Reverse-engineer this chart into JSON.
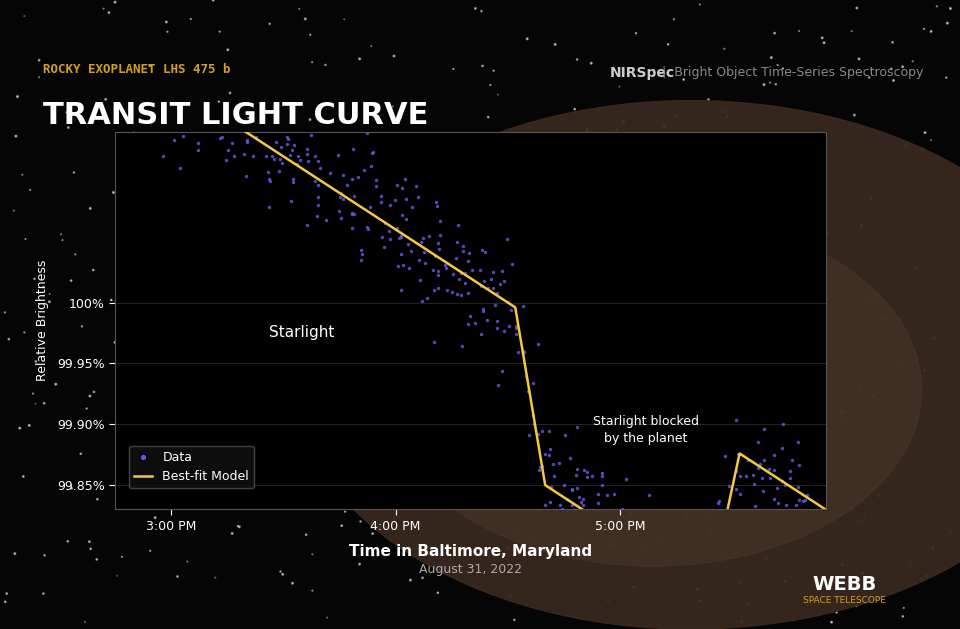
{
  "bg_color": "#050505",
  "plot_bg_color": "#000000",
  "title_small": "ROCKY EXOPLANET LHS 475 b",
  "title_large": "TRANSIT LIGHT CURVE",
  "title_small_color": "#d4a017",
  "title_large_color": "#ffffff",
  "nirspec_text": "NIRSpec",
  "nirspec_subtitle": "Bright Object Time-Series Spectroscopy",
  "xlabel_main": "Time in Baltimore, Maryland",
  "xlabel_sub": "August 31, 2022",
  "ylabel": "Relative Brightness",
  "yticks": [
    99.85,
    99.9,
    99.95,
    100.0
  ],
  "ytick_labels": [
    "99.85%",
    "99.90%",
    "99.95%",
    "100%"
  ],
  "xtick_labels": [
    "3:00 PM",
    "4:00 PM",
    "5:00 PM"
  ],
  "xtick_positions": [
    0.0,
    60.0,
    120.0
  ],
  "ylim": [
    99.83,
    100.14
  ],
  "xlim": [
    -15,
    175
  ],
  "transit_ingress": 96.0,
  "transit_egress": 148.0,
  "transit_depth": 0.13,
  "baseline_slope": -0.002,
  "data_color": "#6655dd",
  "model_color": "#f5c842",
  "starlight_label": "Starlight",
  "blocked_label": "Starlight blocked\nby the planet",
  "legend_label_data": "Data",
  "legend_label_model": "Best-fit Model",
  "n_points": 500,
  "scatter_sigma": 0.025,
  "webb_text": "WEBB",
  "webb_sub": "SPACE TELESCOPE"
}
